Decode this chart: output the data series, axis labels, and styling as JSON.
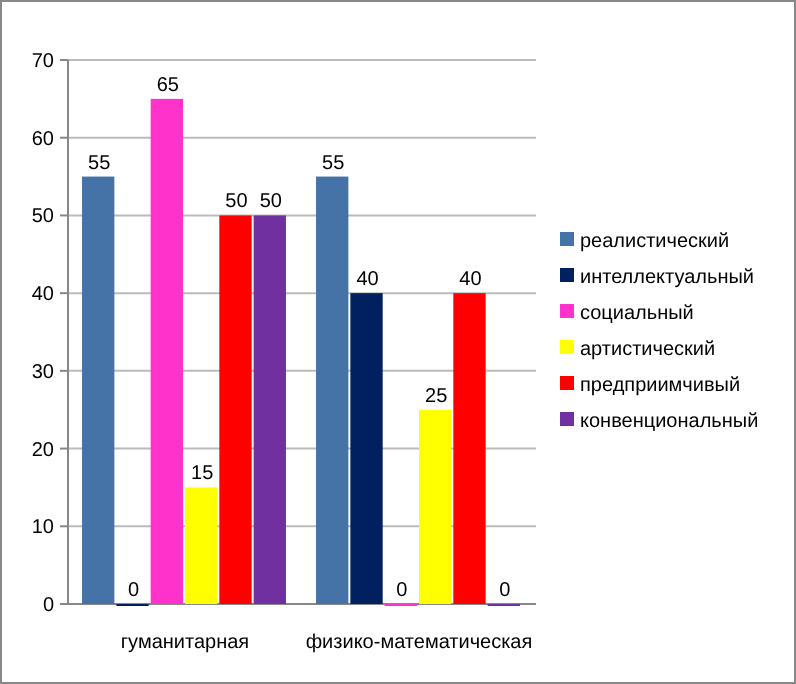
{
  "chart_data": {
    "type": "bar",
    "categories": [
      "гуманитарная",
      "физико-математическая"
    ],
    "series": [
      {
        "name": "реалистический",
        "color": "#4572a7",
        "values": [
          55,
          55
        ]
      },
      {
        "name": "интеллектуальный",
        "color": "#002060",
        "values": [
          0,
          40
        ]
      },
      {
        "name": "социальный",
        "color": "#ff33cc",
        "values": [
          65,
          0
        ]
      },
      {
        "name": "артистический",
        "color": "#ffff00",
        "values": [
          15,
          25
        ]
      },
      {
        "name": "предприимчивый",
        "color": "#ff0000",
        "values": [
          50,
          40
        ]
      },
      {
        "name": "конвенциональный",
        "color": "#7030a0",
        "values": [
          50,
          0
        ]
      }
    ],
    "ylim": [
      0,
      70
    ],
    "yticks": [
      0,
      10,
      20,
      30,
      40,
      50,
      60,
      70
    ],
    "grid": "y",
    "legend": "right",
    "data_labels": true
  }
}
